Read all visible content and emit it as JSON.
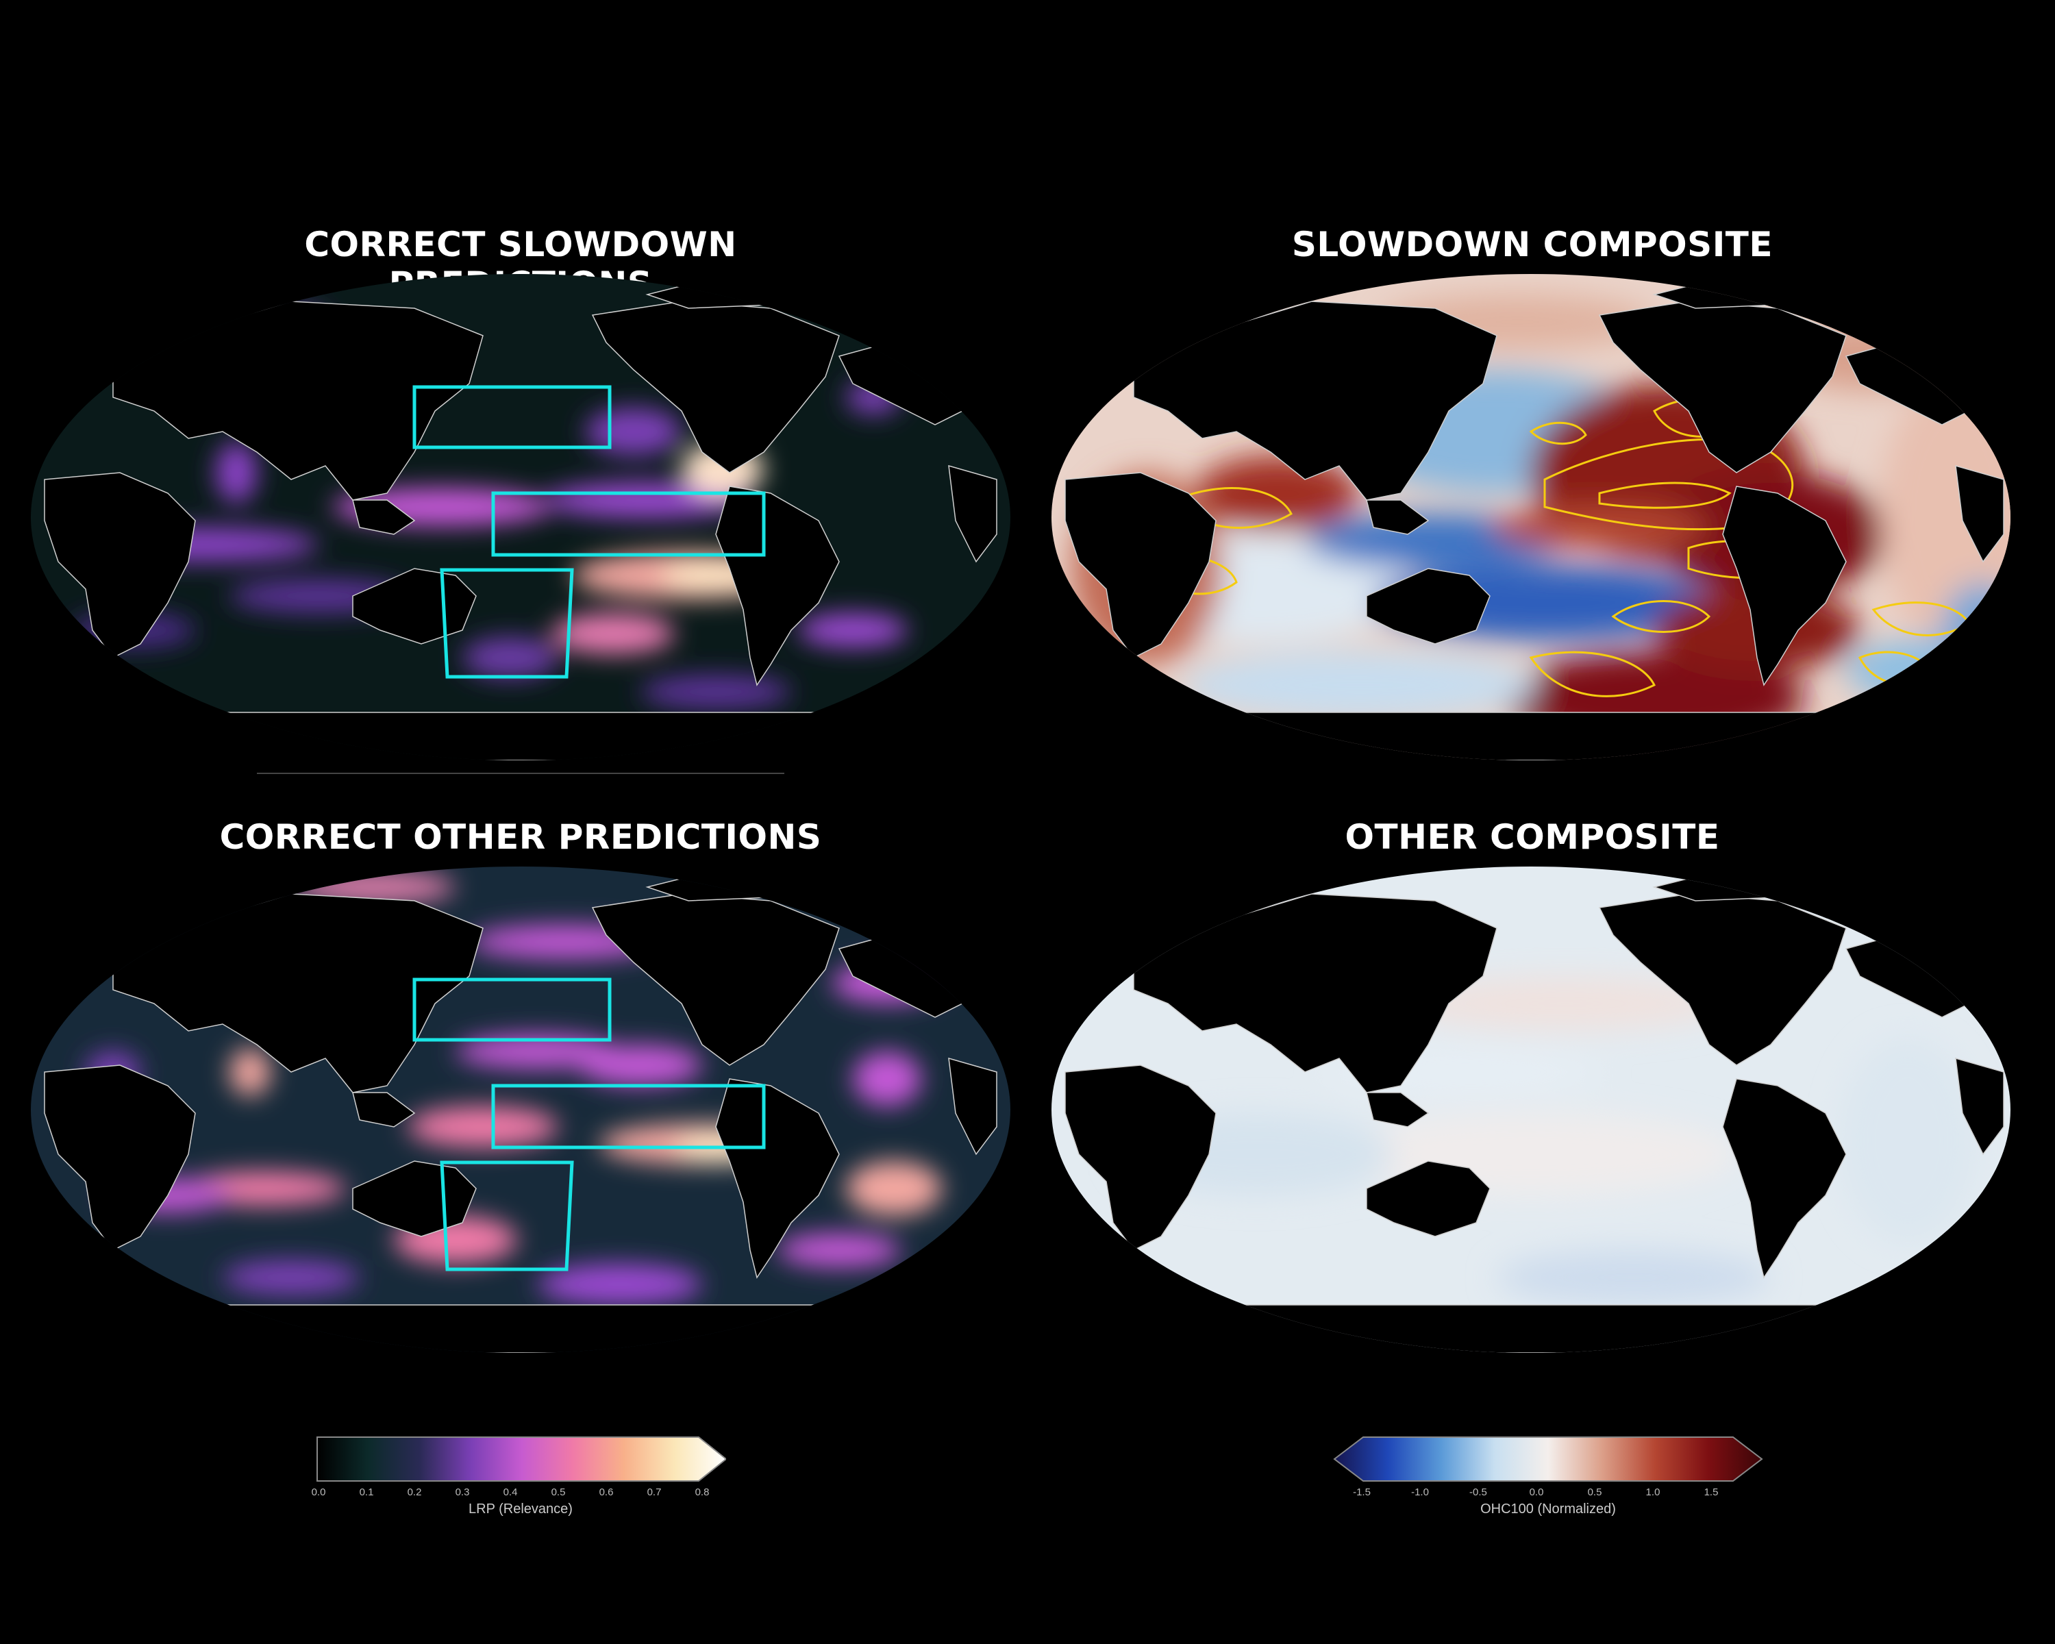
{
  "panels": {
    "top_left": {
      "title": "CORRECT SLOWDOWN PREDICTIONS"
    },
    "top_right": {
      "title": "SLOWDOWN COMPOSITE"
    },
    "bottom_left": {
      "title": "CORRECT OTHER PREDICTIONS"
    },
    "bottom_right": {
      "title": "OTHER COMPOSITE"
    }
  },
  "colorbars": {
    "lrp": {
      "label": "LRP (Relevance)",
      "ticks": [
        "0.0",
        "0.1",
        "0.2",
        "0.3",
        "0.4",
        "0.5",
        "0.6",
        "0.7",
        "0.8"
      ],
      "extend": "max",
      "colors": [
        "#000000",
        "#0c2a2a",
        "#2a2a55",
        "#7a3fb5",
        "#c65bd0",
        "#f07aa8",
        "#f8b08a",
        "#fbe7b8",
        "#ffffff"
      ]
    },
    "ohc": {
      "label": "OHC100 (Normalized)",
      "ticks": [
        "-1.5",
        "-1.0",
        "-0.5",
        "0.0",
        "0.5",
        "1.0",
        "1.5"
      ],
      "extend": "both",
      "colors": [
        "#161650",
        "#1f47b8",
        "#5a9ad8",
        "#c8dff0",
        "#f4efec",
        "#dca08a",
        "#b54632",
        "#7d0f12",
        "#3c0508"
      ]
    }
  },
  "region_boxes_color": "#19e4e4"
}
